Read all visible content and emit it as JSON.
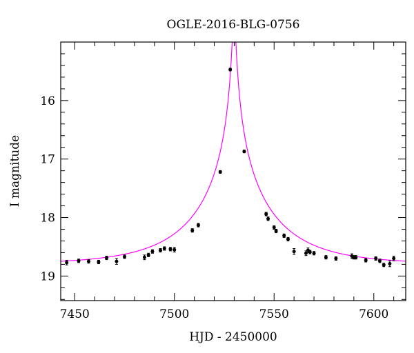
{
  "chart_data": {
    "type": "scatter",
    "title": "OGLE-2016-BLG-0756",
    "xlabel": "HJD - 2450000",
    "ylabel": "I magnitude",
    "xlim": [
      7443,
      7616
    ],
    "ylim": [
      19.42,
      15.0
    ],
    "y_inverted": true,
    "grid": false,
    "x_ticks": [
      7450,
      7500,
      7550,
      7600
    ],
    "y_ticks": [
      16,
      17,
      18,
      19
    ],
    "colors": {
      "model": "#ff00ff",
      "points": "#000000",
      "frame": "#000000"
    },
    "series": [
      {
        "kind": "points_with_errorbars",
        "x": [
          7446,
          7452,
          7457,
          7462,
          7466,
          7471,
          7475,
          7485,
          7487,
          7489,
          7493,
          7495,
          7498,
          7500,
          7509,
          7512,
          7523,
          7528,
          7535,
          7546,
          7547,
          7550,
          7551,
          7555,
          7557,
          7560,
          7566,
          7567,
          7568,
          7570,
          7576,
          7581,
          7589,
          7590,
          7591,
          7596,
          7601,
          7603,
          7605,
          7608,
          7610
        ],
        "y": [
          18.77,
          18.74,
          18.75,
          18.76,
          18.69,
          18.75,
          18.67,
          18.68,
          18.64,
          18.58,
          18.56,
          18.53,
          18.54,
          18.55,
          18.22,
          18.13,
          17.22,
          15.47,
          16.87,
          17.94,
          18.02,
          18.17,
          18.23,
          18.31,
          18.37,
          18.58,
          18.61,
          18.56,
          18.59,
          18.61,
          18.68,
          18.7,
          18.66,
          18.68,
          18.68,
          18.73,
          18.7,
          18.74,
          18.81,
          18.79,
          18.7
        ],
        "err": [
          0.04,
          0.03,
          0.03,
          0.03,
          0.03,
          0.05,
          0.03,
          0.04,
          0.03,
          0.03,
          0.03,
          0.03,
          0.03,
          0.04,
          0.03,
          0.03,
          0.02,
          0.02,
          0.02,
          0.03,
          0.03,
          0.03,
          0.03,
          0.03,
          0.03,
          0.05,
          0.04,
          0.04,
          0.03,
          0.03,
          0.03,
          0.03,
          0.04,
          0.03,
          0.03,
          0.03,
          0.03,
          0.03,
          0.03,
          0.05,
          0.04
        ]
      },
      {
        "kind": "model_curve",
        "model": "microlensing",
        "t0": 7529.9,
        "u0": 0.02,
        "tE": 40.6,
        "baseline": 18.8,
        "peak_magnitude": 15.0
      }
    ]
  }
}
